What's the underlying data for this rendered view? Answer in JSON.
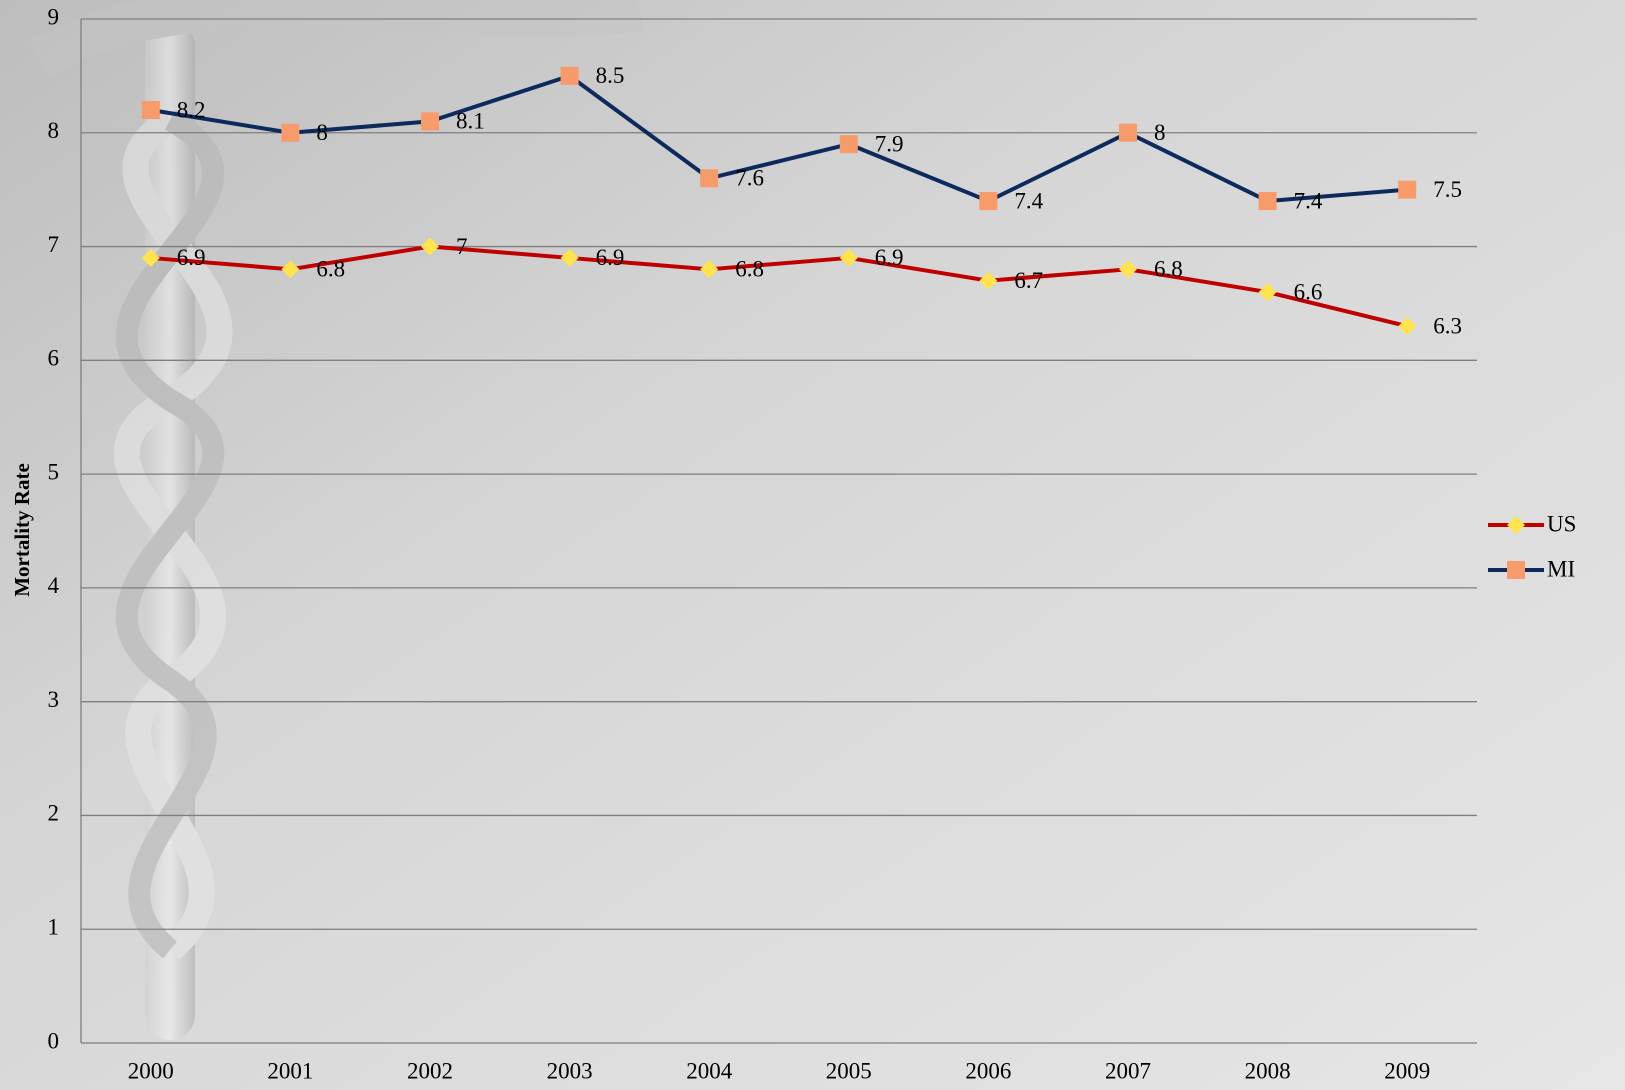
{
  "chart_data": {
    "type": "line",
    "y_label": "Mortality Rate",
    "categories": [
      "2000",
      "2001",
      "2002",
      "2003",
      "2004",
      "2005",
      "2006",
      "2007",
      "2008",
      "2009"
    ],
    "series": [
      {
        "name": "US",
        "color": "#c00000",
        "marker": "diamond",
        "marker_color": "#ffe44d",
        "values": [
          6.9,
          6.8,
          7,
          6.9,
          6.8,
          6.9,
          6.7,
          6.8,
          6.6,
          6.3
        ]
      },
      {
        "name": "MI",
        "color": "#0d2a5c",
        "marker": "square",
        "marker_color": "#f79b6b",
        "values": [
          8.2,
          8,
          8.1,
          8.5,
          7.6,
          7.9,
          7.4,
          8,
          7.4,
          7.5
        ]
      }
    ],
    "ylim": [
      0,
      9
    ],
    "yticks": [
      0,
      1,
      2,
      3,
      4,
      5,
      6,
      7,
      8,
      9
    ],
    "grid": true,
    "legend": "right"
  }
}
